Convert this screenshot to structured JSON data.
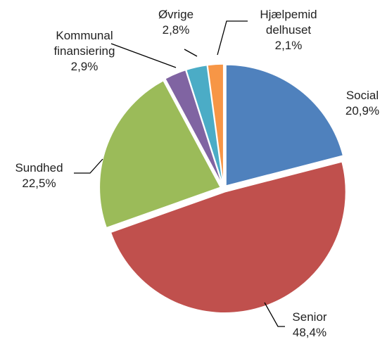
{
  "chart_data": {
    "type": "pie",
    "categories": [
      "Social",
      "Senior",
      "Sundhed",
      "Kommunal finansiering",
      "Øvrige",
      "Hjælpemiddelhuset"
    ],
    "values": [
      20.9,
      48.4,
      22.5,
      2.9,
      2.8,
      2.1
    ],
    "value_labels": [
      "20,9%",
      "48,4%",
      "22,5%",
      "2,9%",
      "2,8%",
      "2,1%"
    ],
    "colors": [
      "#4f81bd",
      "#c0504d",
      "#9bbb59",
      "#8064a2",
      "#4bacc6",
      "#f79646"
    ]
  }
}
